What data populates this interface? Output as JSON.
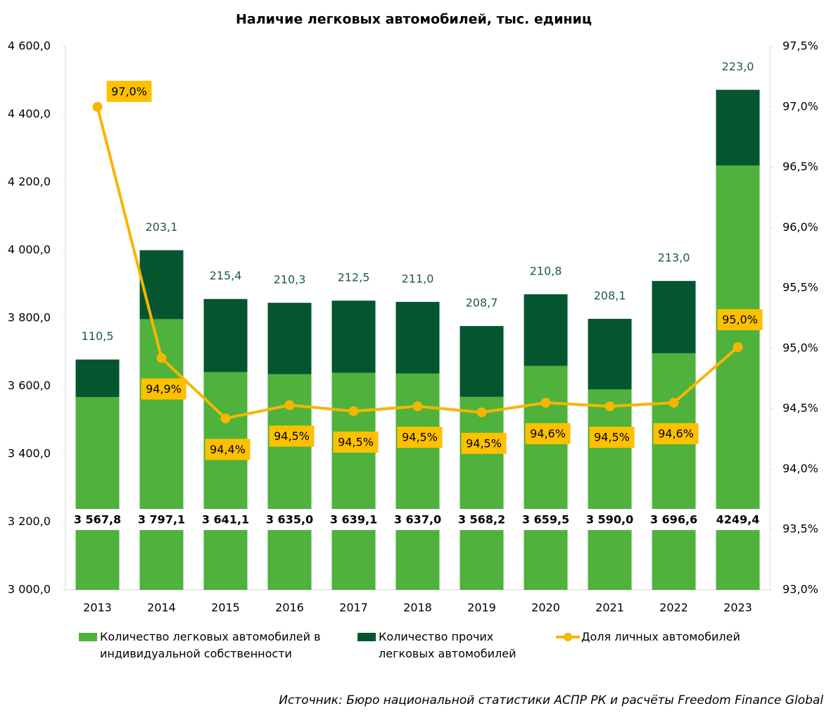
{
  "chart_data": {
    "type": "bar",
    "stacked": true,
    "title": "Наличие легковых автомобилей, тыс. единиц",
    "categories": [
      "2013",
      "2014",
      "2015",
      "2016",
      "2017",
      "2018",
      "2019",
      "2020",
      "2021",
      "2022",
      "2023"
    ],
    "series": [
      {
        "name": "Количество легковых автомобилей в индивидуальной собственности",
        "color": "#4eb23d",
        "values": [
          3567.8,
          3797.1,
          3641.1,
          3635.0,
          3639.1,
          3637.0,
          3568.2,
          3659.5,
          3590.0,
          3696.6,
          4249.4
        ],
        "value_labels": [
          "3 567,8",
          "3 797,1",
          "3 641,1",
          "3 635,0",
          "3 639,1",
          "3 637,0",
          "3 568,2",
          "3 659,5",
          "3 590,0",
          "3 696,6",
          "4249,4"
        ]
      },
      {
        "name": "Количество прочих легковых автомобилей",
        "color": "#05562e",
        "values": [
          110.5,
          203.1,
          215.4,
          210.3,
          212.5,
          211.0,
          208.7,
          210.8,
          208.1,
          213.0,
          223.0
        ],
        "value_labels": [
          "110,5",
          "203,1",
          "215,4",
          "210,3",
          "212,5",
          "211,0",
          "208,7",
          "210,8",
          "208,1",
          "213,0",
          "223,0"
        ]
      },
      {
        "name": "Доля личных автомобилей",
        "type": "line",
        "axis": "y2",
        "color": "#f7b500",
        "values": [
          97.0,
          94.92,
          94.42,
          94.53,
          94.48,
          94.52,
          94.47,
          94.55,
          94.52,
          94.55,
          95.01
        ],
        "value_labels": [
          "97,0%",
          "94,9%",
          "94,4%",
          "94,5%",
          "94,5%",
          "94,5%",
          "94,5%",
          "94,6%",
          "94,5%",
          "94,6%",
          "95,0%"
        ]
      }
    ],
    "ylim": [
      3000,
      4600
    ],
    "yticks": [
      {
        "value": 3000,
        "label": "3 000,0"
      },
      {
        "value": 3200,
        "label": "3 200,0"
      },
      {
        "value": 3400,
        "label": "3 400,0"
      },
      {
        "value": 3600,
        "label": "3 600,0"
      },
      {
        "value": 3800,
        "label": "3 800,0"
      },
      {
        "value": 4000,
        "label": "4 000,0"
      },
      {
        "value": 4200,
        "label": "4 200,0"
      },
      {
        "value": 4400,
        "label": "4 400,0"
      },
      {
        "value": 4600,
        "label": "4 600,0"
      }
    ],
    "y2lim": [
      93.0,
      97.5
    ],
    "y2ticks": [
      {
        "value": 93.0,
        "label": "93,0%"
      },
      {
        "value": 93.5,
        "label": "93,5%"
      },
      {
        "value": 94.0,
        "label": "94,0%"
      },
      {
        "value": 94.5,
        "label": "94,5%"
      },
      {
        "value": 95.0,
        "label": "95,0%"
      },
      {
        "value": 95.5,
        "label": "95,5%"
      },
      {
        "value": 96.0,
        "label": "96,0%"
      },
      {
        "value": 96.5,
        "label": "96,5%"
      },
      {
        "value": 97.0,
        "label": "97,0%"
      },
      {
        "value": 97.5,
        "label": "97,5%"
      }
    ],
    "source": "Источник: Бюро национальной статистики АСПР РК и расчёты Freedom Finance Global"
  }
}
